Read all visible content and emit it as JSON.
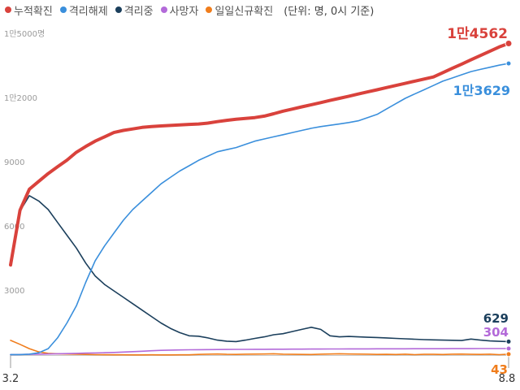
{
  "legend": {
    "unit_note": "(단위: 명, 0시 기준)"
  },
  "chart_data": {
    "type": "line",
    "title": "",
    "xlabel": "",
    "ylabel": "",
    "x_tick_labels": [
      "3.2",
      "8.8"
    ],
    "ylim": [
      0,
      15000
    ],
    "y_ticks": [
      {
        "value": 3000,
        "label": "3000"
      },
      {
        "value": 6000,
        "label": "6000"
      },
      {
        "value": 9000,
        "label": "9000"
      },
      {
        "value": 12000,
        "label": "1만2000"
      },
      {
        "value": 15000,
        "label": "1만5000명"
      }
    ],
    "grid": false,
    "legend_position": "top-left",
    "x_days": [
      0,
      3,
      6,
      9,
      12,
      15,
      18,
      21,
      24,
      27,
      30,
      33,
      36,
      39,
      42,
      45,
      48,
      51,
      54,
      57,
      60,
      63,
      66,
      69,
      72,
      75,
      78,
      81,
      84,
      87,
      90,
      93,
      96,
      99,
      102,
      105,
      108,
      111,
      114,
      117,
      120,
      123,
      126,
      129,
      132,
      135,
      138,
      141,
      144,
      147,
      150,
      153,
      156,
      159
    ],
    "series": [
      {
        "name": "누적확진",
        "color": "#d9423c",
        "end_label": "1만4562",
        "values": [
          4212,
          6767,
          7750,
          8120,
          8482,
          8800,
          9110,
          9480,
          9750,
          10000,
          10200,
          10400,
          10500,
          10570,
          10640,
          10680,
          10710,
          10730,
          10760,
          10780,
          10800,
          10840,
          10910,
          10970,
          11020,
          11060,
          11100,
          11170,
          11280,
          11400,
          11500,
          11600,
          11700,
          11800,
          11900,
          12000,
          12100,
          12200,
          12300,
          12400,
          12500,
          12600,
          12700,
          12800,
          12900,
          13000,
          13200,
          13400,
          13600,
          13800,
          14000,
          14200,
          14400,
          14562
        ]
      },
      {
        "name": "격리해제",
        "color": "#3a8fdc",
        "end_label": "1만3629",
        "values": [
          22,
          24,
          41,
          108,
          300,
          800,
          1500,
          2300,
          3400,
          4400,
          5100,
          5700,
          6300,
          6800,
          7200,
          7600,
          8000,
          8300,
          8600,
          8850,
          9100,
          9300,
          9500,
          9600,
          9700,
          9850,
          10000,
          10100,
          10200,
          10300,
          10400,
          10500,
          10600,
          10680,
          10740,
          10800,
          10870,
          10950,
          11100,
          11250,
          11500,
          11750,
          12000,
          12200,
          12400,
          12600,
          12800,
          12950,
          13100,
          13250,
          13350,
          13450,
          13550,
          13629
        ]
      },
      {
        "name": "격리중",
        "color": "#1b3f5c",
        "end_label": "629",
        "values": [
          4190,
          6730,
          7450,
          7200,
          6800,
          6200,
          5600,
          5000,
          4300,
          3700,
          3300,
          3000,
          2700,
          2400,
          2100,
          1800,
          1500,
          1250,
          1050,
          900,
          880,
          800,
          700,
          650,
          630,
          700,
          780,
          850,
          950,
          1000,
          1100,
          1200,
          1300,
          1200,
          900,
          850,
          870,
          850,
          830,
          820,
          800,
          780,
          760,
          740,
          720,
          710,
          700,
          690,
          680,
          750,
          700,
          660,
          640,
          629
        ]
      },
      {
        "name": "사망자",
        "color": "#b36ad9",
        "end_label": "304",
        "values": [
          22,
          28,
          35,
          42,
          50,
          60,
          70,
          80,
          90,
          100,
          110,
          120,
          140,
          160,
          180,
          200,
          220,
          230,
          240,
          245,
          250,
          255,
          260,
          262,
          264,
          266,
          268,
          270,
          272,
          274,
          276,
          278,
          280,
          282,
          284,
          286,
          288,
          289,
          290,
          291,
          292,
          293,
          294,
          295,
          296,
          297,
          298,
          299,
          300,
          301,
          302,
          303,
          303,
          304
        ]
      },
      {
        "name": "일일신규확진",
        "color": "#f07d1c",
        "end_label": "43",
        "values": [
          686,
          500,
          300,
          150,
          80,
          60,
          50,
          40,
          30,
          20,
          15,
          12,
          10,
          8,
          8,
          10,
          6,
          8,
          10,
          12,
          30,
          40,
          50,
          35,
          30,
          40,
          45,
          50,
          60,
          40,
          35,
          30,
          28,
          40,
          50,
          60,
          48,
          45,
          40,
          30,
          35,
          28,
          40,
          20,
          35,
          33,
          28,
          40,
          45,
          33,
          31,
          40,
          20,
          43
        ]
      }
    ]
  }
}
